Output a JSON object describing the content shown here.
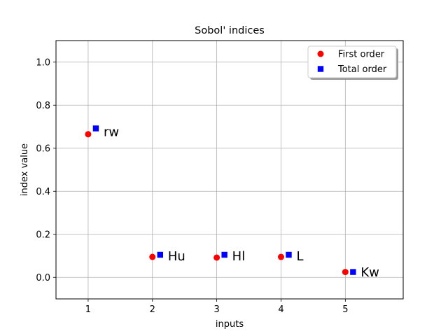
{
  "chart_data": {
    "type": "scatter",
    "title": "Sobol' indices",
    "xlabel": "inputs",
    "ylabel": "index value",
    "xlim": [
      0.5,
      5.9
    ],
    "ylim": [
      -0.1,
      1.1
    ],
    "x_ticks": [
      1,
      2,
      3,
      4,
      5
    ],
    "y_ticks": [
      0.0,
      0.2,
      0.4,
      0.6,
      0.8,
      1.0
    ],
    "x_tick_labels": [
      "1",
      "2",
      "3",
      "4",
      "5"
    ],
    "y_tick_labels": [
      "0.0",
      "0.2",
      "0.4",
      "0.6",
      "0.8",
      "1.0"
    ],
    "grid": true,
    "legend_position": "top-right",
    "series": [
      {
        "name": "First order",
        "marker": "circle",
        "color": "#ff0000",
        "x": [
          1,
          2,
          3,
          4,
          5
        ],
        "y": [
          0.665,
          0.095,
          0.092,
          0.095,
          0.025
        ]
      },
      {
        "name": "Total order",
        "marker": "square",
        "color": "#0000ff",
        "x": [
          1.12,
          2.12,
          3.12,
          4.12,
          5.12
        ],
        "y": [
          0.692,
          0.105,
          0.105,
          0.105,
          0.025
        ]
      }
    ],
    "point_labels": [
      {
        "text": "rw",
        "x": 1.24,
        "y": 0.678
      },
      {
        "text": "Hu",
        "x": 2.24,
        "y": 0.1
      },
      {
        "text": "Hl",
        "x": 3.24,
        "y": 0.1
      },
      {
        "text": "L",
        "x": 4.24,
        "y": 0.1
      },
      {
        "text": "Kw",
        "x": 5.24,
        "y": 0.025
      }
    ]
  }
}
